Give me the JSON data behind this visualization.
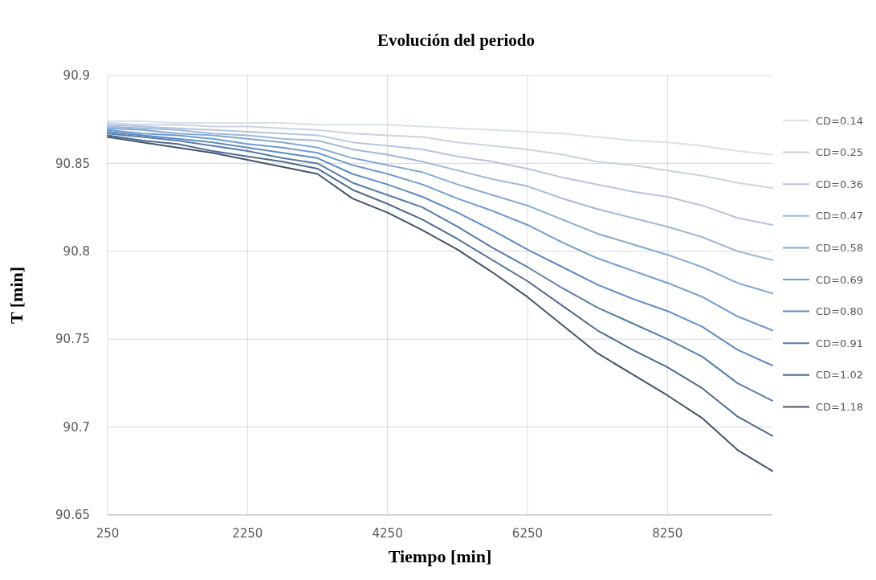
{
  "chart_data": {
    "type": "line",
    "title": "Evolución del periodo",
    "xlabel": "Tiempo  [min]",
    "ylabel": "T  [min]",
    "x": [
      250,
      750,
      1250,
      1750,
      2250,
      2750,
      3250,
      3750,
      4250,
      4750,
      5250,
      5750,
      6250,
      6750,
      7250,
      7750,
      8250,
      8750,
      9250,
      9750
    ],
    "xlim": [
      250,
      9750
    ],
    "xticks": [
      250,
      2250,
      4250,
      6250,
      8250
    ],
    "ylim": [
      90.65,
      90.9
    ],
    "yticks": [
      90.65,
      90.7,
      90.75,
      90.8,
      90.85,
      90.9
    ],
    "grid": true,
    "legend": "right",
    "marker": "none",
    "line_style": "solid",
    "series": [
      {
        "name": "CD=0.14",
        "color": "#dae1ec",
        "values": [
          90.874,
          90.874,
          90.873,
          90.873,
          90.873,
          90.873,
          90.872,
          90.872,
          90.872,
          90.871,
          90.87,
          90.869,
          90.868,
          90.867,
          90.865,
          90.863,
          90.862,
          90.86,
          90.857,
          90.855
        ]
      },
      {
        "name": "CD=0.25",
        "color": "#c9d3e3",
        "values": [
          90.873,
          90.872,
          90.872,
          90.871,
          90.871,
          90.87,
          90.869,
          90.867,
          90.866,
          90.865,
          90.862,
          90.86,
          90.858,
          90.855,
          90.851,
          90.849,
          90.846,
          90.843,
          90.839,
          90.836
        ]
      },
      {
        "name": "CD=0.36",
        "color": "#b5c5dd",
        "values": [
          90.872,
          90.871,
          90.87,
          90.869,
          90.868,
          90.867,
          90.866,
          90.862,
          90.86,
          90.858,
          90.854,
          90.851,
          90.847,
          90.842,
          90.838,
          90.834,
          90.831,
          90.826,
          90.819,
          90.815
        ]
      },
      {
        "name": "CD=0.47",
        "color": "#a0b8d8",
        "values": [
          90.871,
          90.87,
          90.869,
          90.867,
          90.866,
          90.864,
          90.863,
          90.858,
          90.855,
          90.851,
          90.846,
          90.841,
          90.837,
          90.83,
          90.824,
          90.819,
          90.814,
          90.808,
          90.8,
          90.795
        ]
      },
      {
        "name": "CD=0.58",
        "color": "#84a9d6",
        "values": [
          90.87,
          90.869,
          90.867,
          90.866,
          90.864,
          90.862,
          90.859,
          90.853,
          90.849,
          90.845,
          90.838,
          90.832,
          90.826,
          90.818,
          90.81,
          90.804,
          90.798,
          90.791,
          90.782,
          90.776
        ]
      },
      {
        "name": "CD=0.69",
        "color": "#6f9bd0",
        "values": [
          90.869,
          90.867,
          90.866,
          90.864,
          90.861,
          90.859,
          90.856,
          90.849,
          90.844,
          90.838,
          90.83,
          90.823,
          90.815,
          90.805,
          90.796,
          90.789,
          90.782,
          90.774,
          90.763,
          90.755
        ]
      },
      {
        "name": "CD=0.80",
        "color": "#5d8bc4",
        "values": [
          90.868,
          90.866,
          90.864,
          90.862,
          90.859,
          90.856,
          90.853,
          90.844,
          90.838,
          90.831,
          90.822,
          90.812,
          90.801,
          90.791,
          90.781,
          90.773,
          90.766,
          90.757,
          90.744,
          90.735
        ]
      },
      {
        "name": "CD=0.91",
        "color": "#577dab",
        "values": [
          90.867,
          90.865,
          90.863,
          90.86,
          90.857,
          90.853,
          90.85,
          90.839,
          90.832,
          90.825,
          90.814,
          90.802,
          90.791,
          90.779,
          90.768,
          90.759,
          90.75,
          90.74,
          90.725,
          90.715
        ]
      },
      {
        "name": "CD=1.02",
        "color": "#4e6b91",
        "values": [
          90.866,
          90.863,
          90.861,
          90.857,
          90.854,
          90.851,
          90.847,
          90.835,
          90.827,
          90.818,
          90.807,
          90.795,
          90.783,
          90.769,
          90.755,
          90.744,
          90.734,
          90.722,
          90.706,
          90.695
        ]
      },
      {
        "name": "CD=1.18",
        "color": "#44546a",
        "values": [
          90.865,
          90.862,
          90.859,
          90.856,
          90.852,
          90.848,
          90.844,
          90.83,
          90.822,
          90.812,
          90.801,
          90.788,
          90.774,
          90.758,
          90.742,
          90.73,
          90.718,
          90.705,
          90.687,
          90.675
        ]
      }
    ]
  }
}
